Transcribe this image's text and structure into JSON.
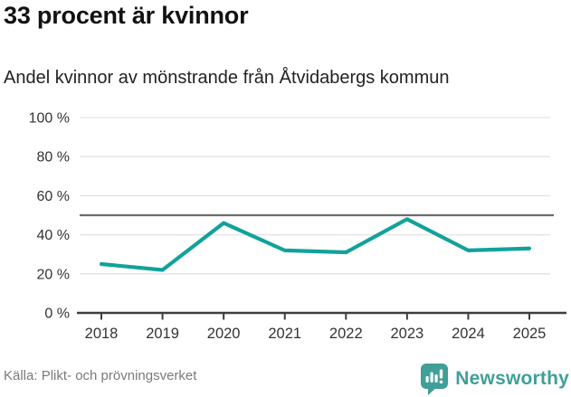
{
  "header": {
    "title": "33 procent är kvinnor",
    "subtitle": "Andel kvinnor av mönstrande från Åtvidabergs kommun"
  },
  "footer": {
    "source": "Källa: Plikt- och prövningsverket",
    "brand_name": "Newsworthy",
    "brand_icon": "bar-chart-speech-bubble-icon"
  },
  "colors": {
    "line": "#12a29a",
    "brand": "#3f9f99",
    "grid": "#e3e3e3",
    "reference_line": "#6b6b6b",
    "axis": "#3d3d3d",
    "tick_label": "#333333"
  },
  "chart_data": {
    "type": "line",
    "title": "33 procent är kvinnor",
    "subtitle": "Andel kvinnor av mönstrande från Åtvidabergs kommun",
    "x": [
      2018,
      2019,
      2020,
      2021,
      2022,
      2023,
      2024,
      2025
    ],
    "xtick_labels": [
      "2018",
      "2019",
      "2020",
      "2021",
      "2022",
      "2023",
      "2024",
      "2025"
    ],
    "series": [
      {
        "name": "Andel kvinnor av mönstrande",
        "values": [
          25,
          22,
          46,
          32,
          31,
          48,
          32,
          33
        ]
      }
    ],
    "unit": "%",
    "ylim": [
      0,
      100
    ],
    "yticks": [
      0,
      20,
      40,
      60,
      80,
      100
    ],
    "ytick_labels": [
      "0 %",
      "20 %",
      "40 %",
      "60 %",
      "80 %",
      "100 %"
    ],
    "reference_line": 50,
    "grid": "horizontal",
    "legend": "none",
    "xlabel": "",
    "ylabel": ""
  }
}
